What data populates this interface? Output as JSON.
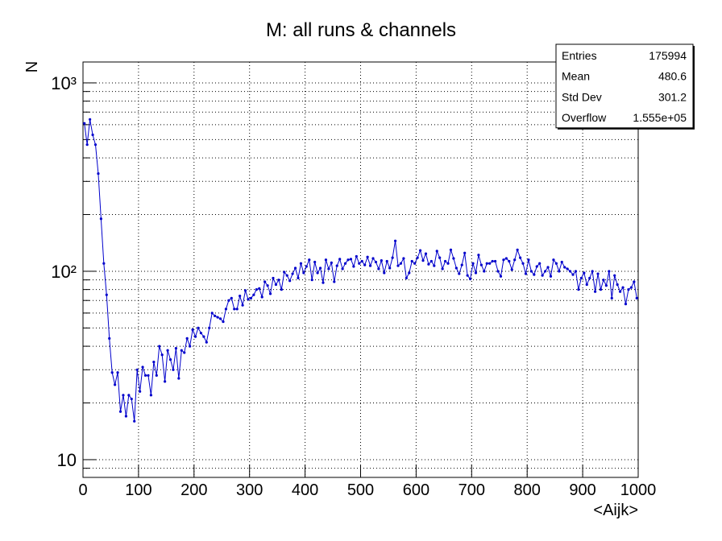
{
  "chart_data": {
    "type": "line",
    "title": "M: all runs & channels",
    "x_label": "<Aijk>",
    "y_label": "N",
    "log_y": true,
    "grid": true,
    "xlim": [
      0,
      1000
    ],
    "xticks": [
      0,
      100,
      200,
      300,
      400,
      500,
      600,
      700,
      800,
      900,
      1000
    ],
    "ylim": [
      8.05,
      1291
    ],
    "yticks": [
      10,
      {
        "value": 100,
        "label": "10²"
      },
      {
        "value": 1000,
        "label": "10³"
      }
    ],
    "stats": [
      {
        "label": "Entries",
        "value": "175994"
      },
      {
        "label": "Mean",
        "value": "480.6"
      },
      {
        "label": "Std Dev",
        "value": "301.2"
      },
      {
        "label": "Overflow",
        "value": "1.555e+05"
      }
    ],
    "x": [
      2.5,
      7.5,
      12.5,
      17.5,
      22.5,
      27.5,
      32.5,
      37.5,
      42.5,
      47.5,
      52.5,
      57.5,
      62.5,
      67.5,
      72.5,
      77.5,
      82.5,
      87.5,
      92.5,
      97.5,
      102.5,
      107.5,
      112.5,
      117.5,
      122.5,
      127.5,
      132.5,
      137.5,
      142.5,
      147.5,
      152.5,
      157.5,
      162.5,
      167.5,
      172.5,
      177.5,
      182.5,
      187.5,
      192.5,
      197.5,
      202.5,
      207.5,
      212.5,
      217.5,
      222.5,
      227.5,
      232.5,
      237.5,
      242.5,
      247.5,
      252.5,
      257.5,
      262.5,
      267.5,
      272.5,
      277.5,
      282.5,
      287.5,
      292.5,
      297.5,
      302.5,
      307.5,
      312.5,
      317.5,
      322.5,
      327.5,
      332.5,
      337.5,
      342.5,
      347.5,
      352.5,
      357.5,
      362.5,
      367.5,
      372.5,
      377.5,
      382.5,
      387.5,
      392.5,
      397.5,
      402.5,
      407.5,
      412.5,
      417.5,
      422.5,
      427.5,
      432.5,
      437.5,
      442.5,
      447.5,
      452.5,
      457.5,
      462.5,
      467.5,
      472.5,
      477.5,
      482.5,
      487.5,
      492.5,
      497.5,
      502.5,
      507.5,
      512.5,
      517.5,
      522.5,
      527.5,
      532.5,
      537.5,
      542.5,
      547.5,
      552.5,
      557.5,
      562.5,
      567.5,
      572.5,
      577.5,
      582.5,
      587.5,
      592.5,
      597.5,
      602.5,
      607.5,
      612.5,
      617.5,
      622.5,
      627.5,
      632.5,
      637.5,
      642.5,
      647.5,
      652.5,
      657.5,
      662.5,
      667.5,
      672.5,
      677.5,
      682.5,
      687.5,
      692.5,
      697.5,
      702.5,
      707.5,
      712.5,
      717.5,
      722.5,
      727.5,
      732.5,
      737.5,
      742.5,
      747.5,
      752.5,
      757.5,
      762.5,
      767.5,
      772.5,
      777.5,
      782.5,
      787.5,
      792.5,
      797.5,
      802.5,
      807.5,
      812.5,
      817.5,
      822.5,
      827.5,
      832.5,
      837.5,
      842.5,
      847.5,
      852.5,
      857.5,
      862.5,
      867.5,
      872.5,
      877.5,
      882.5,
      887.5,
      892.5,
      897.5,
      902.5,
      907.5,
      912.5,
      917.5,
      922.5,
      927.5,
      932.5,
      937.5,
      942.5,
      947.5,
      952.5,
      957.5,
      962.5,
      967.5,
      972.5,
      977.5,
      982.5,
      987.5,
      992.5,
      997.5
    ],
    "series": [
      {
        "color": "#0000cc",
        "values": [
          610,
          470,
          640,
          530,
          470,
          330,
          190,
          110,
          75,
          44,
          29,
          25,
          29,
          18,
          22,
          17,
          22,
          21,
          16,
          30,
          23,
          31,
          28,
          28,
          22,
          33,
          28,
          40,
          36,
          26,
          38,
          34,
          30,
          39,
          27,
          38,
          37,
          44,
          40,
          49,
          45,
          50,
          47,
          45,
          42,
          50,
          60,
          58,
          57,
          56,
          54,
          63,
          70,
          72,
          63,
          63,
          74,
          66,
          79,
          71,
          72,
          75,
          80,
          81,
          73,
          88,
          84,
          76,
          92,
          85,
          90,
          80,
          99,
          95,
          89,
          97,
          104,
          92,
          110,
          98,
          106,
          115,
          90,
          112,
          98,
          104,
          87,
          115,
          103,
          111,
          88,
          107,
          116,
          103,
          110,
          115,
          116,
          106,
          120,
          110,
          113,
          108,
          119,
          107,
          117,
          112,
          103,
          114,
          98,
          113,
          104,
          118,
          145,
          107,
          110,
          117,
          92,
          98,
          113,
          110,
          118,
          129,
          114,
          124,
          109,
          113,
          107,
          128,
          118,
          103,
          113,
          110,
          130,
          117,
          104,
          97,
          108,
          125,
          95,
          91,
          110,
          98,
          122,
          108,
          100,
          110,
          110,
          113,
          113,
          100,
          94,
          115,
          117,
          113,
          102,
          115,
          130,
          118,
          110,
          97,
          115,
          100,
          96,
          106,
          110,
          95,
          100,
          105,
          94,
          115,
          110,
          100,
          112,
          105,
          103,
          100,
          96,
          100,
          80,
          92,
          98,
          85,
          92,
          100,
          78,
          97,
          80,
          90,
          84,
          100,
          72,
          95,
          85,
          78,
          82,
          67,
          80,
          82,
          88,
          72
        ]
      }
    ]
  }
}
